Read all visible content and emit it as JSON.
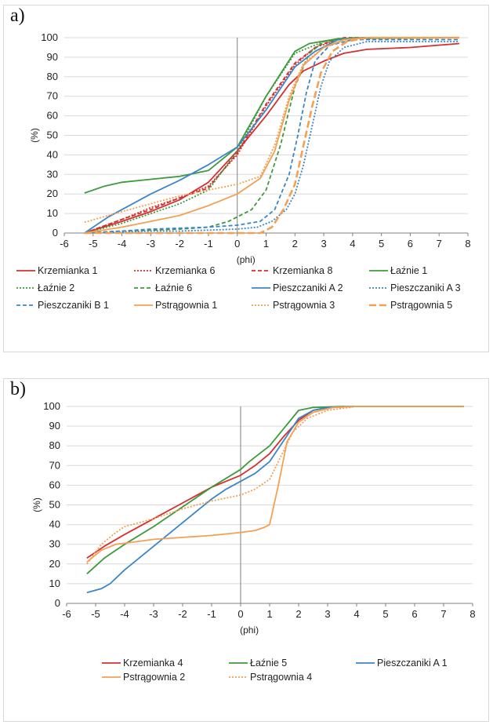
{
  "chart_data": [
    {
      "panel_label": "a)",
      "type": "line",
      "xlabel": "(phi)",
      "ylabel": "(%)",
      "xlim": [
        -6,
        8
      ],
      "ylim": [
        0,
        100
      ],
      "xticks": [
        "-6",
        "-5",
        "-4",
        "-3",
        "-2",
        "-1",
        "0",
        "1",
        "2",
        "3",
        "4",
        "5",
        "6",
        "7",
        "8"
      ],
      "yticks": [
        "0",
        "10",
        "20",
        "30",
        "40",
        "50",
        "60",
        "70",
        "80",
        "90",
        "100"
      ],
      "grid": true,
      "legend_position": "bottom",
      "series": [
        {
          "name": "Krzemianka 1",
          "color": "#d62f2f",
          "dash": "solid",
          "points": [
            [
              -5.3,
              0
            ],
            [
              -4,
              6
            ],
            [
              -3,
              11
            ],
            [
              -2,
              17
            ],
            [
              -1,
              26
            ],
            [
              0,
              42
            ],
            [
              1,
              60
            ],
            [
              1.8,
              76
            ],
            [
              2.3,
              83
            ],
            [
              3,
              88
            ],
            [
              3.7,
              92
            ],
            [
              4.5,
              94
            ],
            [
              6,
              95
            ],
            [
              7.7,
              97
            ]
          ]
        },
        {
          "name": "Krzemianka 6",
          "color": "#d62f2f",
          "dash": "dot",
          "points": [
            [
              -5.3,
              0
            ],
            [
              -4,
              7
            ],
            [
              -3,
              13
            ],
            [
              -2,
              18
            ],
            [
              -1,
              24
            ],
            [
              0,
              40
            ],
            [
              1,
              65
            ],
            [
              2,
              86
            ],
            [
              2.7,
              95
            ],
            [
              3.5,
              99
            ],
            [
              4.5,
              100
            ],
            [
              7.7,
              100
            ]
          ]
        },
        {
          "name": "Krzemianka 8",
          "color": "#d62f2f",
          "dash": "dash",
          "points": [
            [
              -5.3,
              0
            ],
            [
              -4,
              7
            ],
            [
              -3,
              12
            ],
            [
              -2,
              18
            ],
            [
              -1,
              23
            ],
            [
              0,
              41
            ],
            [
              1,
              66
            ],
            [
              2,
              87
            ],
            [
              2.8,
              96
            ],
            [
              3.7,
              100
            ],
            [
              7.7,
              100
            ]
          ]
        },
        {
          "name": "Łaźnie 1",
          "color": "#3d9a3d",
          "dash": "solid",
          "points": [
            [
              -5.3,
              20.5
            ],
            [
              -4.6,
              24
            ],
            [
              -4,
              26
            ],
            [
              -3,
              27.5
            ],
            [
              -2,
              29
            ],
            [
              -1,
              32
            ],
            [
              0,
              44
            ],
            [
              1,
              70
            ],
            [
              2,
              93
            ],
            [
              2.5,
              97
            ],
            [
              3.5,
              99.5
            ],
            [
              7.7,
              100
            ]
          ]
        },
        {
          "name": "Łaźnie 2",
          "color": "#3d9a3d",
          "dash": "dot",
          "points": [
            [
              -5.3,
              0
            ],
            [
              -4,
              5
            ],
            [
              -3,
              10
            ],
            [
              -2,
              15
            ],
            [
              -1,
              22
            ],
            [
              0,
              42
            ],
            [
              1,
              70
            ],
            [
              2,
              92
            ],
            [
              3,
              98
            ],
            [
              4,
              100
            ],
            [
              7.7,
              100
            ]
          ]
        },
        {
          "name": "Łaźnie 6",
          "color": "#3d9a3d",
          "dash": "dash",
          "points": [
            [
              -5.3,
              0
            ],
            [
              -4,
              1
            ],
            [
              -3,
              1.5
            ],
            [
              -2,
              2
            ],
            [
              -1,
              3
            ],
            [
              -0.3,
              6
            ],
            [
              0.5,
              12
            ],
            [
              1,
              22
            ],
            [
              1.5,
              45
            ],
            [
              2,
              75
            ],
            [
              2.5,
              92
            ],
            [
              3,
              98
            ],
            [
              4,
              100
            ],
            [
              7.7,
              100
            ]
          ]
        },
        {
          "name": "Pieszczaniki A 2",
          "color": "#3b86c8",
          "dash": "solid",
          "points": [
            [
              -5.3,
              0
            ],
            [
              -4.5,
              8
            ],
            [
              -4,
              12
            ],
            [
              -3,
              20
            ],
            [
              -2,
              27
            ],
            [
              -1,
              35
            ],
            [
              0,
              44
            ],
            [
              1,
              63
            ],
            [
              2,
              85
            ],
            [
              2.7,
              93
            ],
            [
              3.5,
              99
            ],
            [
              4.5,
              100
            ],
            [
              7.7,
              100
            ]
          ]
        },
        {
          "name": "Pieszczaniki A 3",
          "color": "#3b86c8",
          "dash": "dot",
          "points": [
            [
              -5.3,
              0
            ],
            [
              -4,
              0.5
            ],
            [
              -3,
              1
            ],
            [
              -2,
              1
            ],
            [
              -1,
              1.5
            ],
            [
              0,
              2
            ],
            [
              0.7,
              3
            ],
            [
              1.2,
              6
            ],
            [
              1.7,
              12
            ],
            [
              2,
              20
            ],
            [
              2.3,
              35
            ],
            [
              2.6,
              55
            ],
            [
              2.9,
              75
            ],
            [
              3.2,
              88
            ],
            [
              3.7,
              95
            ],
            [
              4.5,
              98
            ],
            [
              7.7,
              98
            ]
          ]
        },
        {
          "name": "Pieszczaniki B 1",
          "color": "#3b86c8",
          "dash": "dash",
          "points": [
            [
              -5.3,
              0
            ],
            [
              -4,
              1
            ],
            [
              -3,
              2
            ],
            [
              -2,
              2.5
            ],
            [
              -1,
              3
            ],
            [
              0,
              4
            ],
            [
              0.8,
              6
            ],
            [
              1.3,
              12
            ],
            [
              1.8,
              30
            ],
            [
              2.1,
              50
            ],
            [
              2.4,
              72
            ],
            [
              2.7,
              88
            ],
            [
              3.2,
              96
            ],
            [
              4,
              99
            ],
            [
              7.7,
              99
            ]
          ]
        },
        {
          "name": "Pstrągownia 1",
          "color": "#f3a052",
          "dash": "solid",
          "points": [
            [
              -5.3,
              0
            ],
            [
              -4,
              3
            ],
            [
              -3,
              6
            ],
            [
              -2,
              9
            ],
            [
              -1,
              14
            ],
            [
              0,
              20
            ],
            [
              0.8,
              28
            ],
            [
              1.3,
              42
            ],
            [
              1.8,
              68
            ],
            [
              2.3,
              86
            ],
            [
              3,
              95
            ],
            [
              3.7,
              99
            ],
            [
              4.5,
              100
            ],
            [
              7.7,
              100
            ]
          ]
        },
        {
          "name": "Pstrągownia 3",
          "color": "#f3a052",
          "dash": "dot",
          "points": [
            [
              -5.3,
              5.5
            ],
            [
              -4,
              11
            ],
            [
              -3,
              15
            ],
            [
              -2,
              19
            ],
            [
              -1,
              22
            ],
            [
              0,
              25
            ],
            [
              0.8,
              29
            ],
            [
              1.3,
              45
            ],
            [
              1.8,
              70
            ],
            [
              2.3,
              87
            ],
            [
              3,
              95
            ],
            [
              3.8,
              99
            ],
            [
              4.5,
              100
            ],
            [
              7.7,
              100
            ]
          ]
        },
        {
          "name": "Pstrągownia 5",
          "color": "#f3a052",
          "dash": "longdash",
          "points": [
            [
              -5.3,
              0
            ],
            [
              -3,
              0
            ],
            [
              -1,
              0
            ],
            [
              0,
              0
            ],
            [
              0.8,
              0
            ],
            [
              1.2,
              3
            ],
            [
              1.6,
              12
            ],
            [
              2,
              25
            ],
            [
              2.3,
              45
            ],
            [
              2.6,
              65
            ],
            [
              2.9,
              82
            ],
            [
              3.3,
              93
            ],
            [
              3.8,
              98
            ],
            [
              4.5,
              100
            ],
            [
              7.7,
              100
            ]
          ]
        }
      ]
    },
    {
      "panel_label": "b)",
      "type": "line",
      "xlabel": "(phi)",
      "ylabel": "(%)",
      "xlim": [
        -6,
        8
      ],
      "ylim": [
        0,
        100
      ],
      "xticks": [
        "-6",
        "-5",
        "-4",
        "-3",
        "-2",
        "-1",
        "0",
        "1",
        "2",
        "3",
        "4",
        "5",
        "6",
        "7",
        "8"
      ],
      "yticks": [
        "0",
        "10",
        "20",
        "30",
        "40",
        "50",
        "60",
        "70",
        "80",
        "90",
        "100"
      ],
      "grid": true,
      "legend_position": "bottom",
      "series": [
        {
          "name": "Krzemianka 4",
          "color": "#d62f2f",
          "dash": "solid",
          "points": [
            [
              -5.3,
              23
            ],
            [
              -4.7,
              29
            ],
            [
              -4,
              35
            ],
            [
              -3,
              43
            ],
            [
              -2,
              51
            ],
            [
              -1,
              59
            ],
            [
              0,
              65
            ],
            [
              0.5,
              70
            ],
            [
              1,
              76
            ],
            [
              1.5,
              85
            ],
            [
              2,
              93
            ],
            [
              2.5,
              98
            ],
            [
              3,
              99.5
            ],
            [
              4,
              100
            ],
            [
              7.7,
              100
            ]
          ]
        },
        {
          "name": "Łaźnie 5",
          "color": "#3d9a3d",
          "dash": "solid",
          "points": [
            [
              -5.3,
              15
            ],
            [
              -4.7,
              23
            ],
            [
              -4,
              30
            ],
            [
              -3,
              39
            ],
            [
              -2,
              49
            ],
            [
              -1,
              59
            ],
            [
              0,
              68
            ],
            [
              0.3,
              72
            ],
            [
              1,
              80
            ],
            [
              1.5,
              89
            ],
            [
              2,
              98
            ],
            [
              2.5,
              99.5
            ],
            [
              3.5,
              100
            ],
            [
              7.7,
              100
            ]
          ]
        },
        {
          "name": "Pieszczaniki A 1",
          "color": "#3b86c8",
          "dash": "solid",
          "points": [
            [
              -5.3,
              5.5
            ],
            [
              -4.8,
              7.5
            ],
            [
              -4.5,
              10
            ],
            [
              -4,
              17
            ],
            [
              -3,
              29
            ],
            [
              -2,
              41
            ],
            [
              -1,
              53
            ],
            [
              -0.5,
              58
            ],
            [
              0,
              62
            ],
            [
              0.5,
              66
            ],
            [
              1,
              72
            ],
            [
              1.5,
              83
            ],
            [
              2,
              94
            ],
            [
              2.5,
              98
            ],
            [
              3,
              99.5
            ],
            [
              4,
              100
            ],
            [
              7.7,
              100
            ]
          ]
        },
        {
          "name": "Pstrągownia 2",
          "color": "#f3a052",
          "dash": "solid",
          "points": [
            [
              -5.3,
              21
            ],
            [
              -4.8,
              27
            ],
            [
              -4.3,
              30
            ],
            [
              -4,
              30.5
            ],
            [
              -3,
              32.5
            ],
            [
              -2,
              33.5
            ],
            [
              -1,
              34.5
            ],
            [
              0,
              36
            ],
            [
              0.5,
              37
            ],
            [
              0.8,
              38.5
            ],
            [
              1,
              40
            ],
            [
              1.3,
              60
            ],
            [
              1.6,
              82
            ],
            [
              2,
              92
            ],
            [
              2.5,
              97
            ],
            [
              3.2,
              99.5
            ],
            [
              4,
              100
            ],
            [
              7.7,
              100
            ]
          ]
        },
        {
          "name": "Pstrągownia 4",
          "color": "#f3a052",
          "dash": "dot",
          "points": [
            [
              -5.3,
              20
            ],
            [
              -4.8,
              30
            ],
            [
              -4.3,
              36
            ],
            [
              -4,
              39
            ],
            [
              -3,
              43
            ],
            [
              -2,
              48
            ],
            [
              -1,
              52
            ],
            [
              0,
              55
            ],
            [
              0.5,
              58
            ],
            [
              1,
              63
            ],
            [
              1.4,
              75
            ],
            [
              1.8,
              87
            ],
            [
              2.3,
              94
            ],
            [
              3,
              98
            ],
            [
              4,
              100
            ],
            [
              7.7,
              100
            ]
          ]
        }
      ]
    }
  ]
}
